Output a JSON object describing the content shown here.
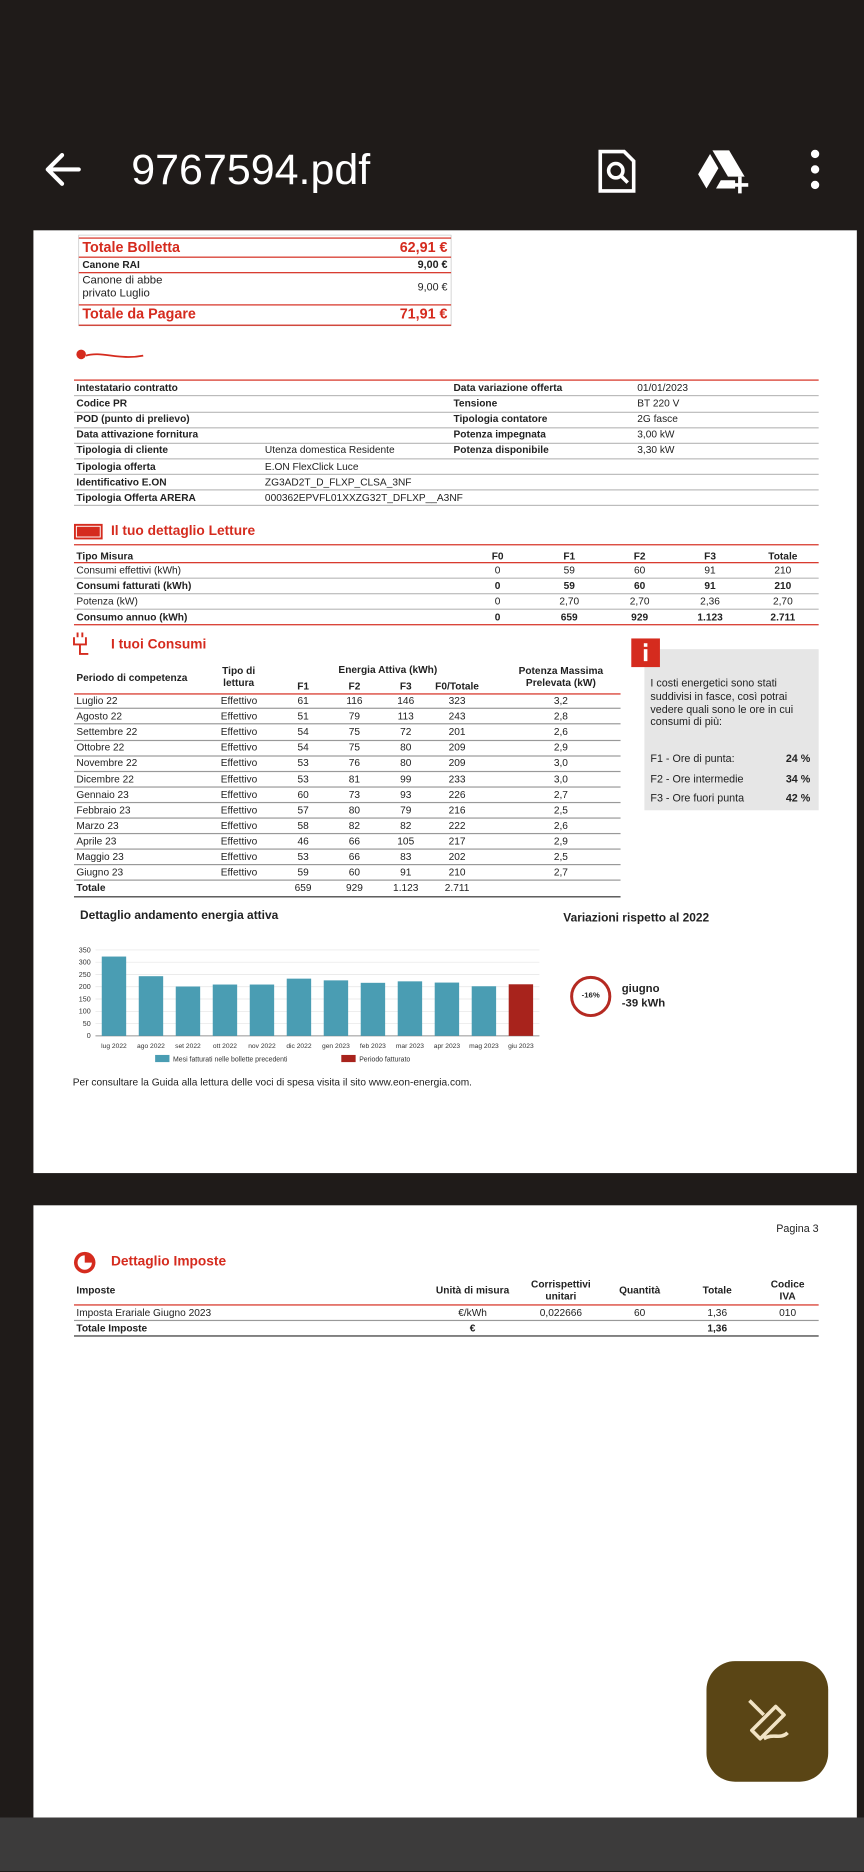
{
  "app_bar": {
    "title": "9767594.pdf"
  },
  "bill_summary": {
    "rows": [
      {
        "label": "Totale Bolletta",
        "amount": "62,91 €"
      },
      {
        "label": "Canone RAI",
        "amount": "9,00 €"
      },
      {
        "label": "Canone di abbe privato Luglio",
        "amount": "9,00 €"
      },
      {
        "label": "Totale da Pagare",
        "amount": "71,91 €"
      }
    ]
  },
  "contract": {
    "rows": [
      [
        "Intestatario contratto",
        null,
        "Data variazione offerta",
        "01/01/2023"
      ],
      [
        "Codice PR",
        null,
        "Tensione",
        "BT 220 V"
      ],
      [
        "POD (punto di prelievo)",
        null,
        "Tipologia contatore",
        "2G fasce"
      ],
      [
        "Data attivazione fornitura",
        null,
        "Potenza impegnata",
        "3,00 kW"
      ],
      [
        "Tipologia di cliente",
        "Utenza domestica Residente",
        "Potenza disponibile",
        "3,30 kW"
      ],
      [
        "Tipologia offerta",
        "E.ON FlexClick Luce",
        null,
        null
      ],
      [
        "Identificativo E.ON",
        "ZG3AD2T_D_FLXP_CLSA_3NF",
        null,
        null
      ],
      [
        "Tipologia Offerta ARERA",
        "000362EPVFL01XXZG32T_DFLXP__A3NF",
        null,
        null
      ]
    ]
  },
  "readings": {
    "title": "Il tuo dettaglio Letture",
    "header": [
      "Tipo Misura",
      "F0",
      "F1",
      "F2",
      "F3",
      "Totale"
    ],
    "rows": [
      [
        "Consumi effettivi (kWh)",
        "0",
        "59",
        "60",
        "91",
        "210"
      ],
      [
        "Consumi fatturati (kWh)",
        "0",
        "59",
        "60",
        "91",
        "210"
      ],
      [
        "Potenza (kW)",
        "0",
        "2,70",
        "2,70",
        "2,36",
        "2,70"
      ],
      [
        "Consumo annuo (kWh)",
        "0",
        "659",
        "929",
        "1.123",
        "2.711"
      ]
    ]
  },
  "consumption": {
    "title": "I tuoi Consumi",
    "group_header": "Energia Attiva (kWh)",
    "header": [
      "Periodo di competenza",
      "Tipo di lettura",
      "F1",
      "F2",
      "F3",
      "F0/Totale",
      "Potenza Massima Prelevata (kW)"
    ],
    "rows": [
      [
        "Luglio 22",
        "Effettivo",
        "61",
        "116",
        "146",
        "323",
        "3,2"
      ],
      [
        "Agosto 22",
        "Effettivo",
        "51",
        "79",
        "113",
        "243",
        "2,8"
      ],
      [
        "Settembre 22",
        "Effettivo",
        "54",
        "75",
        "72",
        "201",
        "2,6"
      ],
      [
        "Ottobre 22",
        "Effettivo",
        "54",
        "75",
        "80",
        "209",
        "2,9"
      ],
      [
        "Novembre 22",
        "Effettivo",
        "53",
        "76",
        "80",
        "209",
        "3,0"
      ],
      [
        "Dicembre 22",
        "Effettivo",
        "53",
        "81",
        "99",
        "233",
        "3,0"
      ],
      [
        "Gennaio 23",
        "Effettivo",
        "60",
        "73",
        "93",
        "226",
        "2,7"
      ],
      [
        "Febbraio 23",
        "Effettivo",
        "57",
        "80",
        "79",
        "216",
        "2,5"
      ],
      [
        "Marzo 23",
        "Effettivo",
        "58",
        "82",
        "82",
        "222",
        "2,6"
      ],
      [
        "Aprile 23",
        "Effettivo",
        "46",
        "66",
        "105",
        "217",
        "2,9"
      ],
      [
        "Maggio 23",
        "Effettivo",
        "53",
        "66",
        "83",
        "202",
        "2,5"
      ],
      [
        "Giugno 23",
        "Effettivo",
        "59",
        "60",
        "91",
        "210",
        "2,7"
      ],
      [
        "Totale",
        null,
        "659",
        "929",
        "1.123",
        "2.711",
        null
      ]
    ]
  },
  "info_box": {
    "text": "I costi energetici sono stati suddivisi in fasce, così potrai vedere quali sono le ore in cui consumi di più:",
    "bands": [
      {
        "label": "F1 - Ore di punta:",
        "share": "24 %"
      },
      {
        "label": "F2 - Ore intermedie",
        "share": "34 %"
      },
      {
        "label": "F3 - Ore fuori punta",
        "share": "42 %"
      }
    ]
  },
  "chart_data": {
    "type": "bar",
    "title": "Dettaglio andamento energia attiva",
    "categories": [
      "lug 2022",
      "ago 2022",
      "set 2022",
      "ott 2022",
      "nov 2022",
      "dic 2022",
      "gen 2023",
      "feb 2023",
      "mar 2023",
      "apr 2023",
      "mag 2023",
      "giu 2023"
    ],
    "values": [
      323,
      243,
      201,
      209,
      209,
      233,
      226,
      216,
      222,
      217,
      202,
      210
    ],
    "colors": [
      "#4a9db3",
      "#4a9db3",
      "#4a9db3",
      "#4a9db3",
      "#4a9db3",
      "#4a9db3",
      "#4a9db3",
      "#4a9db3",
      "#4a9db3",
      "#4a9db3",
      "#4a9db3",
      "#a8231c"
    ],
    "ylim": [
      0,
      350
    ],
    "yticks": [
      0,
      50,
      100,
      150,
      200,
      250,
      300,
      350
    ],
    "grid": true,
    "legend": [
      {
        "name": "Mesi fatturati nelle bollette precedenti",
        "color": "#4a9db3"
      },
      {
        "name": "Periodo fatturato",
        "color": "#a8231c"
      }
    ]
  },
  "variation": {
    "title": "Variazioni rispetto al 2022",
    "percent": "-16%",
    "month": "giugno",
    "delta": "-39 kWh"
  },
  "footnote": "Per consultare la Guida alla lettura delle voci di spesa visita il sito www.eon-energia.com.",
  "page2": {
    "page_label": "Pagina 3",
    "title": "Dettaglio Imposte",
    "header": [
      "Imposte",
      "Unità di misura",
      "Corrispettivi unitari",
      "Quantità",
      "Totale",
      "Codice IVA"
    ],
    "rows": [
      [
        "Imposta Erariale Giugno 2023",
        "€/kWh",
        "0,022666",
        "60",
        "1,36",
        "010"
      ],
      [
        "Totale Imposte",
        "€",
        null,
        null,
        "1,36",
        null
      ]
    ]
  }
}
